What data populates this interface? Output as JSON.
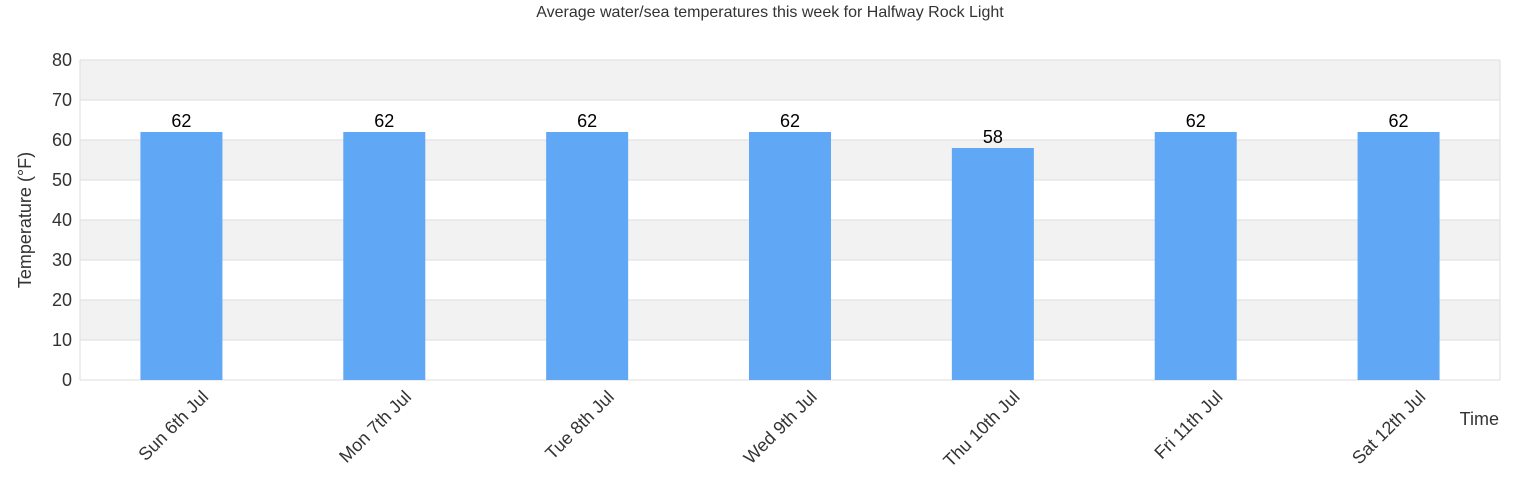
{
  "chart_data": {
    "type": "bar",
    "title": "Average water/sea temperatures this week for Halfway Rock Light",
    "xlabel": "Time",
    "ylabel": "Temperature (°F)",
    "categories": [
      "Sun 6th Jul",
      "Mon 7th Jul",
      "Tue 8th Jul",
      "Wed 9th Jul",
      "Thu 10th Jul",
      "Fri 11th Jul",
      "Sat 12th Jul"
    ],
    "values": [
      62,
      62,
      62,
      62,
      58,
      62,
      62
    ],
    "data_labels": [
      "62",
      "62",
      "62",
      "62",
      "58",
      "62",
      "62"
    ],
    "ylim": [
      0,
      80
    ],
    "y_ticks": [
      0,
      10,
      20,
      30,
      40,
      50,
      60,
      70,
      80
    ],
    "grid": true,
    "legend": "none",
    "colors": {
      "bar": "#60a8f5",
      "band_alt": "#f2f2f2",
      "band": "#ffffff",
      "grid": "#dddddd"
    }
  }
}
